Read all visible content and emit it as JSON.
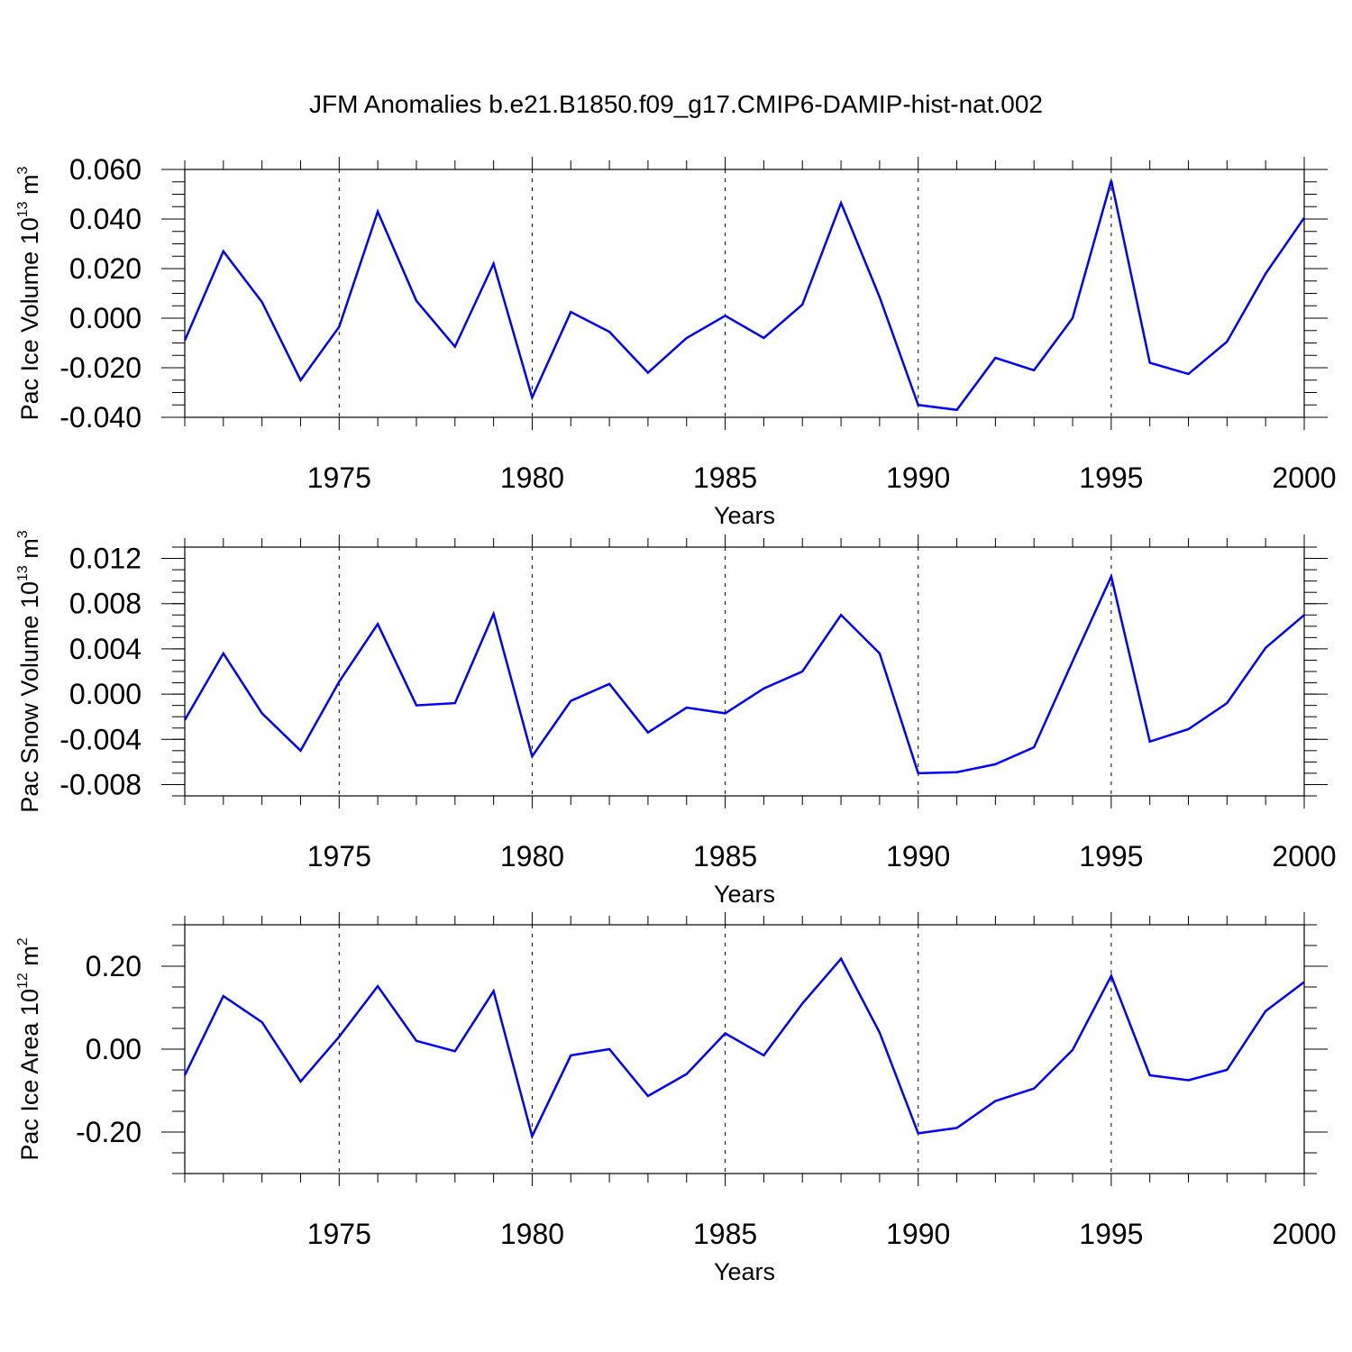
{
  "title": "JFM Anomalies b.e21.B1850.f09_g17.CMIP6-DAMIP-hist-nat.002",
  "line_color": "#0000ff",
  "chart_data": [
    {
      "type": "line",
      "title": "",
      "xlabel": "Years",
      "ylabel": {
        "text": "Pac Ice Volume 10",
        "sup": "13",
        "unit": " m",
        "unit_sup": "3"
      },
      "xlim": [
        1971,
        2000
      ],
      "ylim": [
        -0.04,
        0.06
      ],
      "major_xticks": [
        1975,
        1980,
        1985,
        1990,
        1995,
        2000
      ],
      "x_tick_labels": [
        "1975",
        "1980",
        "1985",
        "1990",
        "1995",
        "2000"
      ],
      "yticks": [
        -0.04,
        -0.02,
        0.0,
        0.02,
        0.04,
        0.06
      ],
      "y_tick_labels": [
        "-0.040",
        "-0.020",
        "0.000",
        "0.020",
        "0.040",
        "0.060"
      ],
      "y_minor_step": 0.005,
      "grid": "dashed vertical at major x ticks",
      "series": [
        {
          "name": "Pac Ice Volume",
          "x": [
            1971,
            1972,
            1973,
            1974,
            1975,
            1976,
            1977,
            1978,
            1979,
            1980,
            1981,
            1982,
            1983,
            1984,
            1985,
            1986,
            1987,
            1988,
            1989,
            1990,
            1991,
            1992,
            1993,
            1994,
            1995,
            1996,
            1997,
            1998,
            1999,
            2000
          ],
          "values": [
            -0.009,
            0.027,
            0.0065,
            -0.025,
            -0.0035,
            0.043,
            0.007,
            -0.0115,
            0.022,
            -0.032,
            0.0025,
            -0.0055,
            -0.022,
            -0.008,
            0.001,
            -0.008,
            0.0055,
            0.0465,
            0.0085,
            -0.035,
            -0.037,
            -0.016,
            -0.021,
            0.0,
            0.0555,
            -0.018,
            -0.0225,
            -0.0095,
            0.018,
            0.0405
          ]
        }
      ]
    },
    {
      "type": "line",
      "title": "",
      "xlabel": "Years",
      "ylabel": {
        "text": "Pac Snow Volume 10",
        "sup": "13",
        "unit": " m",
        "unit_sup": "3"
      },
      "xlim": [
        1971,
        2000
      ],
      "ylim": [
        -0.009,
        0.013
      ],
      "major_xticks": [
        1975,
        1980,
        1985,
        1990,
        1995,
        2000
      ],
      "x_tick_labels": [
        "1975",
        "1980",
        "1985",
        "1990",
        "1995",
        "2000"
      ],
      "yticks": [
        -0.008,
        -0.004,
        0.0,
        0.004,
        0.008,
        0.012
      ],
      "y_tick_labels": [
        "-0.008",
        "-0.004",
        "0.000",
        "0.004",
        "0.008",
        "0.012"
      ],
      "y_minor_step": 0.001,
      "grid": "dashed vertical at major x ticks",
      "series": [
        {
          "name": "Pac Snow Volume",
          "x": [
            1971,
            1972,
            1973,
            1974,
            1975,
            1976,
            1977,
            1978,
            1979,
            1980,
            1981,
            1982,
            1983,
            1984,
            1985,
            1986,
            1987,
            1988,
            1989,
            1990,
            1991,
            1992,
            1993,
            1994,
            1995,
            1996,
            1997,
            1998,
            1999,
            2000
          ],
          "values": [
            -0.0023,
            0.0036,
            -0.0017,
            -0.005,
            0.0011,
            0.0062,
            -0.001,
            -0.0008,
            0.0071,
            -0.0055,
            -0.0006,
            0.0009,
            -0.0034,
            -0.0012,
            -0.0017,
            0.0005,
            0.002,
            0.007,
            0.0036,
            -0.007,
            -0.0069,
            -0.0062,
            -0.0047,
            0.0029,
            0.0104,
            -0.0042,
            -0.0031,
            -0.0008,
            0.0041,
            0.007
          ]
        }
      ]
    },
    {
      "type": "line",
      "title": "",
      "xlabel": "Years",
      "ylabel": {
        "text": "Pac Ice Area 10",
        "sup": "12",
        "unit": " m",
        "unit_sup": "2"
      },
      "xlim": [
        1971,
        2000
      ],
      "ylim": [
        -0.3,
        0.3
      ],
      "major_xticks": [
        1975,
        1980,
        1985,
        1990,
        1995,
        2000
      ],
      "x_tick_labels": [
        "1975",
        "1980",
        "1985",
        "1990",
        "1995",
        "2000"
      ],
      "yticks": [
        -0.2,
        0.0,
        0.2
      ],
      "y_tick_labels": [
        "-0.20",
        "0.00",
        "0.20"
      ],
      "y_minor_step": 0.05,
      "grid": "dashed vertical at major x ticks",
      "series": [
        {
          "name": "Pac Ice Area",
          "x": [
            1971,
            1972,
            1973,
            1974,
            1975,
            1976,
            1977,
            1978,
            1979,
            1980,
            1981,
            1982,
            1983,
            1984,
            1985,
            1986,
            1987,
            1988,
            1989,
            1990,
            1991,
            1992,
            1993,
            1994,
            1995,
            1996,
            1997,
            1998,
            1999,
            2000
          ],
          "values": [
            -0.063,
            0.128,
            0.065,
            -0.078,
            0.03,
            0.152,
            0.02,
            -0.005,
            0.14,
            -0.21,
            -0.015,
            0.0,
            -0.113,
            -0.06,
            0.038,
            -0.015,
            0.11,
            0.218,
            0.04,
            -0.203,
            -0.19,
            -0.125,
            -0.095,
            -0.002,
            0.177,
            -0.063,
            -0.075,
            -0.05,
            0.092,
            0.162
          ]
        }
      ]
    }
  ]
}
